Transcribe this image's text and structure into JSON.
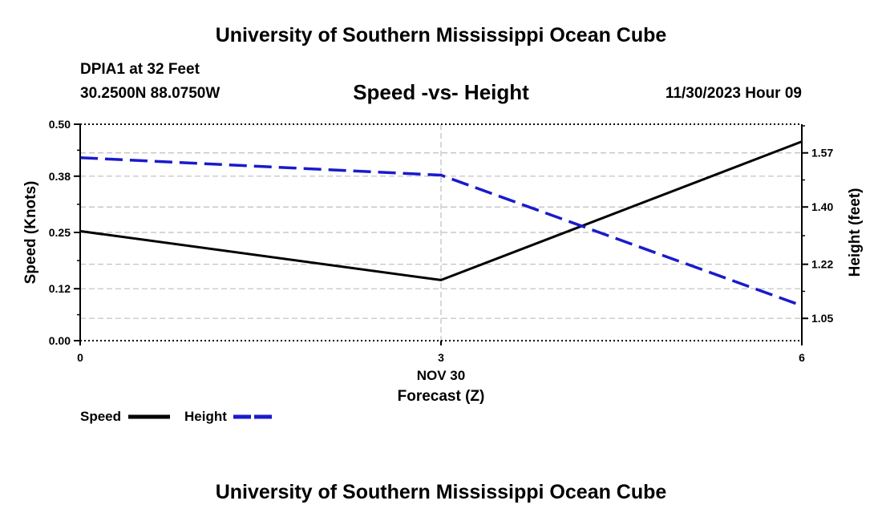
{
  "header": {
    "title": "University of Southern Mississippi Ocean Cube",
    "station": "DPIA1 at 32 Feet",
    "coordinates": "30.2500N  88.0750W",
    "timestamp": "11/30/2023 Hour 09"
  },
  "footer": {
    "title": "University of Southern Mississippi Ocean Cube"
  },
  "chart_data": {
    "type": "line",
    "title": "Speed -vs- Height",
    "xlabel": "Forecast (Z)",
    "x_date_label": "NOV 30",
    "x": [
      0,
      3,
      6
    ],
    "x_tick_labels": [
      "0",
      "3",
      "6"
    ],
    "xlim": [
      0,
      6
    ],
    "ylabel": "Speed (Knots)",
    "ylim": [
      0,
      0.5
    ],
    "y_tick_labels": [
      "0.00",
      "0.12",
      "0.25",
      "0.38",
      "0.50"
    ],
    "y2label": "Height (feet)",
    "y2lim": [
      0.98,
      1.66
    ],
    "y2_ticks": [
      1.05,
      1.22,
      1.4,
      1.57
    ],
    "y2_tick_labels": [
      "1.05",
      "1.22",
      "1.40",
      "1.57"
    ],
    "grid": true,
    "legend_position": "bottom-left",
    "series": [
      {
        "name": "Speed",
        "axis": "left",
        "values": [
          0.253,
          0.14,
          0.46
        ],
        "color": "#000000",
        "style": "solid"
      },
      {
        "name": "Height",
        "axis": "right",
        "values": [
          1.555,
          1.5,
          1.09
        ],
        "color": "#1a1acc",
        "style": "dashed"
      }
    ]
  }
}
